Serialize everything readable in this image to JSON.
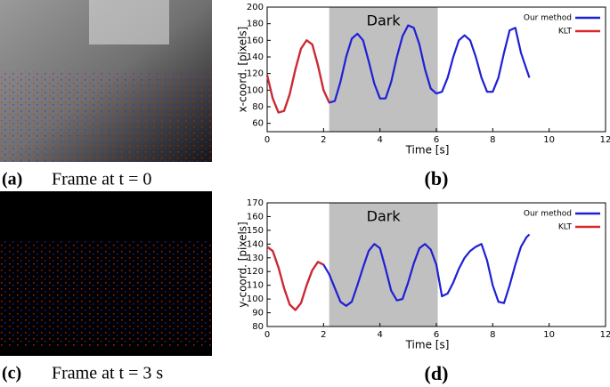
{
  "panels": [
    {
      "label": "(a)",
      "text": "Frame at t = 0"
    },
    {
      "label": "(c)",
      "text": "Frame at t = 3 s"
    }
  ],
  "chart_data": [
    {
      "type": "line",
      "panel": "(b)",
      "xlabel": "Time [s]",
      "ylabel": "x-coord. [pixels]",
      "xlim": [
        0,
        12
      ],
      "xticks": [
        0,
        2,
        4,
        6,
        8,
        10,
        12
      ],
      "ylim": [
        50,
        200
      ],
      "yticks": [
        60,
        80,
        100,
        120,
        140,
        160,
        180,
        200
      ],
      "legend": "upper right",
      "shade": {
        "x": [
          2.2,
          6.05
        ],
        "label": "Dark",
        "color": "#c0c0c0"
      },
      "series": [
        {
          "name": "Our method",
          "color": "#1f1fd6",
          "x": [
            0,
            0.2,
            0.4,
            0.6,
            0.8,
            1.0,
            1.2,
            1.4,
            1.6,
            1.8,
            2.0,
            2.2,
            2.4,
            2.6,
            2.8,
            3.0,
            3.2,
            3.4,
            3.6,
            3.8,
            4.0,
            4.2,
            4.4,
            4.6,
            4.8,
            5.0,
            5.2,
            5.4,
            5.6,
            5.8,
            6.0,
            6.2,
            6.4,
            6.6,
            6.8,
            7.0,
            7.2,
            7.4,
            7.6,
            7.8,
            8.0,
            8.2,
            8.4,
            8.6,
            8.8,
            9.0,
            9.2,
            9.3
          ],
          "values": [
            118,
            90,
            73,
            75,
            95,
            125,
            150,
            160,
            155,
            130,
            100,
            85,
            87,
            110,
            140,
            162,
            168,
            160,
            135,
            108,
            90,
            90,
            110,
            140,
            165,
            178,
            175,
            155,
            125,
            102,
            96,
            98,
            115,
            140,
            160,
            166,
            160,
            140,
            115,
            98,
            98,
            115,
            145,
            172,
            175,
            145,
            125,
            115
          ]
        },
        {
          "name": "KLT",
          "color": "#d62828",
          "x": [
            0,
            0.2,
            0.4,
            0.6,
            0.8,
            1.0,
            1.2,
            1.4,
            1.6,
            1.8,
            2.0,
            2.2
          ],
          "values": [
            118,
            90,
            73,
            75,
            95,
            125,
            150,
            160,
            155,
            130,
            100,
            85
          ]
        }
      ]
    },
    {
      "type": "line",
      "panel": "(d)",
      "xlabel": "Time [s]",
      "ylabel": "y-coord. [pixels]",
      "xlim": [
        0,
        12
      ],
      "xticks": [
        0,
        2,
        4,
        6,
        8,
        10,
        12
      ],
      "ylim": [
        80,
        170
      ],
      "yticks": [
        80,
        90,
        100,
        110,
        120,
        130,
        140,
        150,
        160,
        170
      ],
      "legend": "upper right",
      "shade": {
        "x": [
          2.2,
          6.05
        ],
        "label": "Dark",
        "color": "#c0c0c0"
      },
      "series": [
        {
          "name": "Our method",
          "color": "#1f1fd6",
          "x": [
            0,
            0.2,
            0.4,
            0.6,
            0.8,
            1.0,
            1.2,
            1.4,
            1.6,
            1.8,
            2.0,
            2.2,
            2.4,
            2.6,
            2.8,
            3.0,
            3.2,
            3.4,
            3.6,
            3.8,
            4.0,
            4.2,
            4.4,
            4.6,
            4.8,
            5.0,
            5.2,
            5.4,
            5.6,
            5.8,
            6.0,
            6.2,
            6.4,
            6.6,
            6.8,
            7.0,
            7.2,
            7.4,
            7.6,
            7.8,
            8.0,
            8.2,
            8.4,
            8.6,
            8.8,
            9.0,
            9.2,
            9.3
          ],
          "values": [
            138,
            135,
            123,
            108,
            96,
            92,
            97,
            110,
            121,
            127,
            125,
            118,
            108,
            98,
            95,
            98,
            110,
            123,
            135,
            140,
            137,
            122,
            106,
            99,
            100,
            112,
            126,
            137,
            140,
            136,
            125,
            102,
            104,
            112,
            122,
            130,
            135,
            138,
            140,
            128,
            110,
            98,
            97,
            110,
            125,
            138,
            145,
            147
          ]
        },
        {
          "name": "KLT",
          "color": "#d62828",
          "x": [
            0,
            0.2,
            0.4,
            0.6,
            0.8,
            1.0,
            1.2,
            1.4,
            1.6,
            1.8,
            2.0
          ],
          "values": [
            138,
            135,
            123,
            108,
            96,
            92,
            97,
            110,
            121,
            127,
            125
          ]
        }
      ]
    }
  ]
}
